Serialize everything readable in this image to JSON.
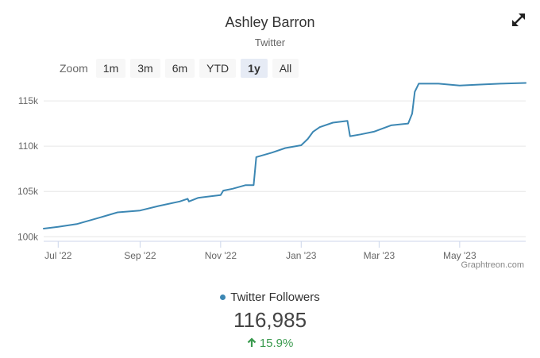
{
  "header": {
    "title": "Ashley Barron",
    "subtitle": "Twitter"
  },
  "toolbar": {
    "zoom_label": "Zoom",
    "buttons": [
      "1m",
      "3m",
      "6m",
      "YTD",
      "1y",
      "All"
    ],
    "active": "1y",
    "expand_icon": "expand-arrows-icon"
  },
  "credit": "Graphtreon.com",
  "summary": {
    "legend": "Twitter Followers",
    "value": "116,985",
    "change": "15.9%",
    "change_icon": "arrow-up-icon"
  },
  "colors": {
    "line": "#3c87b3",
    "positive": "#3a9a4e"
  },
  "chart_data": {
    "type": "line",
    "title": "",
    "xlabel": "",
    "ylabel": "",
    "x_ticks": [
      "Jul '22",
      "Sep '22",
      "Nov '22",
      "Jan '23",
      "Mar '23",
      "May '23"
    ],
    "x_tick_dates": [
      "2022-07-01",
      "2022-09-01",
      "2022-11-01",
      "2023-01-01",
      "2023-03-01",
      "2023-05-01"
    ],
    "y_ticks": [
      "100k",
      "105k",
      "110k",
      "115k"
    ],
    "y_tick_values": [
      100000,
      105000,
      110000,
      115000
    ],
    "ylim": [
      99500,
      116500
    ],
    "xlim": [
      "2022-06-20",
      "2023-06-20"
    ],
    "grid": true,
    "legend": "bottom-center",
    "series": [
      {
        "name": "Twitter Followers",
        "points": [
          [
            "2022-06-20",
            100900
          ],
          [
            "2022-07-01",
            101100
          ],
          [
            "2022-07-15",
            101400
          ],
          [
            "2022-08-01",
            102100
          ],
          [
            "2022-08-15",
            102700
          ],
          [
            "2022-09-01",
            102900
          ],
          [
            "2022-09-15",
            103400
          ],
          [
            "2022-10-01",
            103900
          ],
          [
            "2022-10-07",
            104200
          ],
          [
            "2022-10-08",
            103900
          ],
          [
            "2022-10-15",
            104300
          ],
          [
            "2022-11-01",
            104600
          ],
          [
            "2022-11-03",
            105100
          ],
          [
            "2022-11-10",
            105300
          ],
          [
            "2022-11-20",
            105700
          ],
          [
            "2022-11-26",
            105700
          ],
          [
            "2022-11-28",
            108800
          ],
          [
            "2022-12-10",
            109300
          ],
          [
            "2022-12-20",
            109800
          ],
          [
            "2023-01-01",
            110100
          ],
          [
            "2023-01-06",
            110800
          ],
          [
            "2023-01-10",
            111600
          ],
          [
            "2023-01-15",
            112100
          ],
          [
            "2023-01-25",
            112600
          ],
          [
            "2023-02-05",
            112800
          ],
          [
            "2023-02-07",
            111100
          ],
          [
            "2023-02-15",
            111300
          ],
          [
            "2023-02-25",
            111600
          ],
          [
            "2023-03-10",
            112300
          ],
          [
            "2023-03-23",
            112500
          ],
          [
            "2023-03-26",
            113600
          ],
          [
            "2023-03-28",
            116000
          ],
          [
            "2023-03-31",
            116900
          ],
          [
            "2023-04-15",
            116900
          ],
          [
            "2023-05-01",
            116700
          ],
          [
            "2023-05-15",
            116800
          ],
          [
            "2023-06-01",
            116900
          ],
          [
            "2023-06-20",
            116985
          ]
        ]
      }
    ]
  }
}
